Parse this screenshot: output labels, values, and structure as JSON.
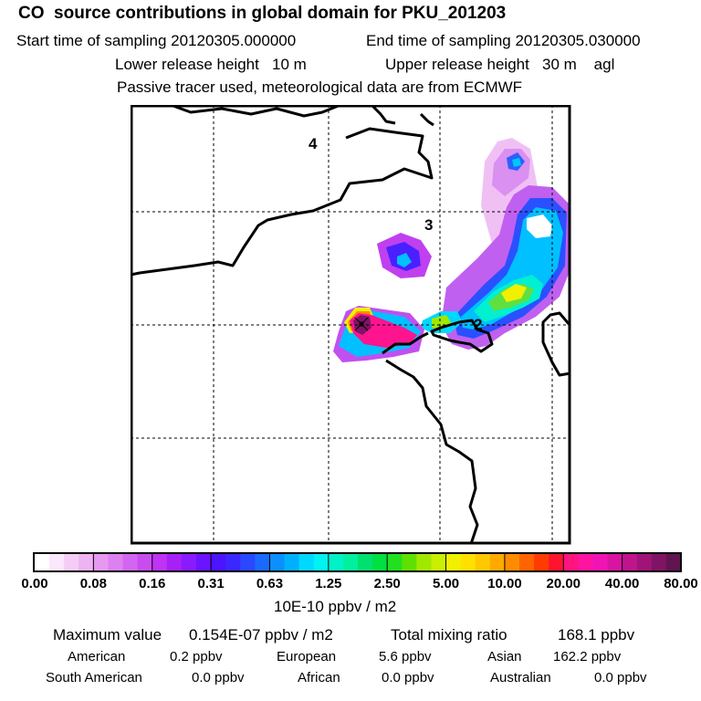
{
  "header": {
    "title": "CO  source contributions in global domain for PKU_201203",
    "start_text": "Start time of sampling 20120305.000000",
    "end_text": "End time of sampling 20120305.030000",
    "lower_text": "Lower release height   10 m",
    "upper_text": "Upper release height   30 m    agl",
    "passive_text": "Passive tracer used, meteorological data are from ECMWF"
  },
  "map": {
    "day_labels": [
      "4",
      "3",
      "2"
    ]
  },
  "colorbar": {
    "ticks": [
      "0.00",
      "0.08",
      "0.16",
      "0.31",
      "0.63",
      "1.25",
      "2.50",
      "5.00",
      "10.00",
      "20.00",
      "40.00",
      "80.00"
    ],
    "units": "10E-10 ppbv / m2",
    "colors": [
      "#ffffff",
      "#fbe6fb",
      "#f5ccf5",
      "#eeb3f2",
      "#e699f0",
      "#dd80f0",
      "#d366f0",
      "#c94cf0",
      "#bf33f5",
      "#a620f7",
      "#8a1aff",
      "#6a14ff",
      "#4d14ff",
      "#3a28ff",
      "#2a48ff",
      "#1a6aff",
      "#0a90ff",
      "#00b0ff",
      "#00d8ff",
      "#00f2f2",
      "#00f2c8",
      "#00f0a0",
      "#00e070",
      "#00e040",
      "#20e020",
      "#60e000",
      "#a0e800",
      "#c8f000",
      "#f0f000",
      "#ffe000",
      "#ffc800",
      "#ffaa00",
      "#ff8c00",
      "#ff6400",
      "#ff3c00",
      "#ff1430",
      "#ff1480",
      "#ff14a0",
      "#f014b4",
      "#d814a0",
      "#c0148c",
      "#a01478",
      "#801464",
      "#601450"
    ]
  },
  "stats": {
    "max_label": "Maximum value",
    "max_value": "0.154E-07 ppbv / m2",
    "total_label": "Total mixing ratio",
    "total_value": "168.1 ppbv",
    "sources": [
      {
        "name": "American",
        "value": "0.2 ppbv"
      },
      {
        "name": "European",
        "value": "5.6 ppbv"
      },
      {
        "name": "Asian",
        "value": "162.2 ppbv"
      },
      {
        "name": "South American",
        "value": "0.0 ppbv"
      },
      {
        "name": "African",
        "value": "0.0 ppbv"
      },
      {
        "name": "Australian",
        "value": "0.0 ppbv"
      }
    ]
  }
}
